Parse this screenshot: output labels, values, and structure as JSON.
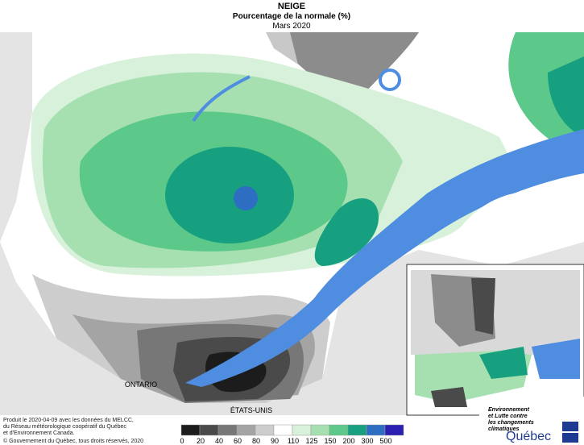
{
  "header": {
    "title": "NEIGE",
    "subtitle": "Pourcentage de la normale (%)",
    "period": "Mars 2020"
  },
  "map": {
    "labels": [
      "ONTARIO",
      "ÉTATS-UNIS"
    ]
  },
  "legend": {
    "classes": [
      {
        "label": "0",
        "color": "#1c1c1c"
      },
      {
        "label": "20",
        "color": "#4a4a4a"
      },
      {
        "label": "40",
        "color": "#777777"
      },
      {
        "label": "60",
        "color": "#a4a4a4"
      },
      {
        "label": "80",
        "color": "#cdcdcd"
      },
      {
        "label": "90",
        "color": "#ffffff"
      },
      {
        "label": "110",
        "color": "#d8f1db"
      },
      {
        "label": "125",
        "color": "#a6e0b1"
      },
      {
        "label": "150",
        "color": "#5cc98a"
      },
      {
        "label": "200",
        "color": "#17a07f"
      },
      {
        "label": "300",
        "color": "#2e6ec2"
      },
      {
        "label": "500",
        "color": "#2a1fb0"
      }
    ]
  },
  "footer": {
    "lines": [
      "Produit le 2020-04-09 avec les données du MELCC,",
      "du Réseau météorologique coopératif du Québec",
      "et d'Environnement Canada."
    ],
    "copyright": "© Gouvernement du Québec, tous droits réservés, 2020"
  },
  "logo": {
    "lines": [
      "Environnement",
      "et Lutte contre",
      "les changements",
      "climatiques"
    ],
    "name": "Québec"
  }
}
